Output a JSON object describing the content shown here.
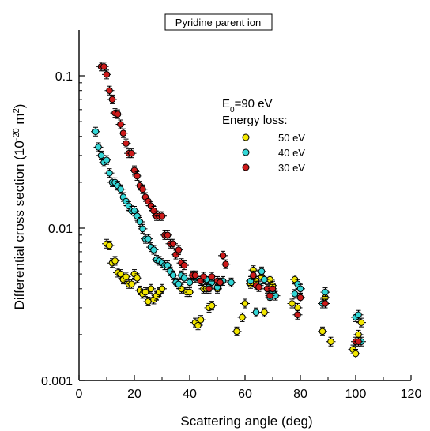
{
  "chart_data": {
    "type": "scatter",
    "title": "Pyridine parent ion",
    "xlabel": "Scattering angle (deg)",
    "ylabel_main": "Differential cross section (10",
    "ylabel_sup": "-20",
    "ylabel_unit": " m",
    "ylabel_unit_sup": "2",
    "ylabel_end": ")",
    "xlim": [
      0,
      120
    ],
    "ylim": [
      0.001,
      0.2
    ],
    "yscale": "log",
    "xticks": [
      0,
      20,
      40,
      60,
      80,
      100,
      120
    ],
    "yticks": [
      {
        "value": 0.001,
        "label": "0.001"
      },
      {
        "value": 0.01,
        "label": "0.01"
      },
      {
        "value": 0.1,
        "label": "0.1"
      }
    ],
    "legend": {
      "line1_main": "E",
      "line1_sub": "0",
      "line1_rest": "=90 eV",
      "line2": "Energy loss:",
      "position": "upper-right"
    },
    "series": [
      {
        "name": "50 eV",
        "color": "#f2e600",
        "points": [
          [
            10,
            0.0079
          ],
          [
            11,
            0.0077
          ],
          [
            12,
            0.0059
          ],
          [
            13,
            0.0061
          ],
          [
            14,
            0.0051
          ],
          [
            15,
            0.005
          ],
          [
            16,
            0.0046
          ],
          [
            17,
            0.0048
          ],
          [
            18,
            0.0043
          ],
          [
            19,
            0.0043
          ],
          [
            20,
            0.005
          ],
          [
            21,
            0.0047
          ],
          [
            22,
            0.0039
          ],
          [
            23,
            0.0037
          ],
          [
            24,
            0.0038
          ],
          [
            25,
            0.0033
          ],
          [
            26,
            0.004
          ],
          [
            27,
            0.0034
          ],
          [
            28,
            0.0036
          ],
          [
            29,
            0.0038
          ],
          [
            30,
            0.004
          ],
          [
            37,
            0.004
          ],
          [
            39,
            0.0038
          ],
          [
            40,
            0.0038
          ],
          [
            42,
            0.0024
          ],
          [
            43,
            0.0023
          ],
          [
            44,
            0.0025
          ],
          [
            45,
            0.004
          ],
          [
            46,
            0.004
          ],
          [
            47,
            0.003
          ],
          [
            48,
            0.0031
          ],
          [
            50,
            0.004
          ],
          [
            57,
            0.0021
          ],
          [
            59,
            0.0026
          ],
          [
            60,
            0.0032
          ],
          [
            62,
            0.0043
          ],
          [
            63,
            0.0053
          ],
          [
            64,
            0.0045
          ],
          [
            66,
            0.0048
          ],
          [
            67,
            0.0028
          ],
          [
            69,
            0.0046
          ],
          [
            70,
            0.0042
          ],
          [
            77,
            0.0032
          ],
          [
            78,
            0.0046
          ],
          [
            79,
            0.003
          ],
          [
            88,
            0.0021
          ],
          [
            89,
            0.0035
          ],
          [
            91,
            0.0018
          ],
          [
            99,
            0.0016
          ],
          [
            100,
            0.0015
          ],
          [
            101,
            0.002
          ],
          [
            102,
            0.0024
          ]
        ]
      },
      {
        "name": "40 eV",
        "color": "#33d6d6",
        "points": [
          [
            6,
            0.043
          ],
          [
            7,
            0.034
          ],
          [
            8,
            0.03
          ],
          [
            9,
            0.027
          ],
          [
            10,
            0.028
          ],
          [
            11,
            0.023
          ],
          [
            12,
            0.02
          ],
          [
            13,
            0.02
          ],
          [
            14,
            0.019
          ],
          [
            15,
            0.018
          ],
          [
            16,
            0.016
          ],
          [
            17,
            0.015
          ],
          [
            18,
            0.014
          ],
          [
            19,
            0.013
          ],
          [
            20,
            0.013
          ],
          [
            21,
            0.012
          ],
          [
            22,
            0.011
          ],
          [
            23,
            0.0099
          ],
          [
            24,
            0.0085
          ],
          [
            25,
            0.0085
          ],
          [
            26,
            0.0075
          ],
          [
            27,
            0.0072
          ],
          [
            28,
            0.0062
          ],
          [
            29,
            0.0061
          ],
          [
            30,
            0.0059
          ],
          [
            31,
            0.0057
          ],
          [
            32,
            0.0057
          ],
          [
            33,
            0.0052
          ],
          [
            34,
            0.0049
          ],
          [
            35,
            0.0044
          ],
          [
            36,
            0.0043
          ],
          [
            37,
            0.0049
          ],
          [
            38,
            0.0047
          ],
          [
            40,
            0.0044
          ],
          [
            42,
            0.0047
          ],
          [
            44,
            0.0045
          ],
          [
            46,
            0.0046
          ],
          [
            47,
            0.0041
          ],
          [
            48,
            0.0044
          ],
          [
            50,
            0.0041
          ],
          [
            52,
            0.0045
          ],
          [
            55,
            0.0044
          ],
          [
            62,
            0.0045
          ],
          [
            64,
            0.0028
          ],
          [
            65,
            0.0042
          ],
          [
            66,
            0.0052
          ],
          [
            67,
            0.0046
          ],
          [
            69,
            0.0035
          ],
          [
            70,
            0.0038
          ],
          [
            71,
            0.0036
          ],
          [
            78,
            0.0037
          ],
          [
            79,
            0.0043
          ],
          [
            80,
            0.004
          ],
          [
            88,
            0.0032
          ],
          [
            89,
            0.0038
          ],
          [
            100,
            0.0026
          ],
          [
            101,
            0.0027
          ],
          [
            102,
            0.0018
          ]
        ]
      },
      {
        "name": "30 eV",
        "color": "#cc1a1a",
        "points": [
          [
            8,
            0.115
          ],
          [
            9,
            0.115
          ],
          [
            10,
            0.102
          ],
          [
            11,
            0.08
          ],
          [
            12,
            0.07
          ],
          [
            13,
            0.057
          ],
          [
            14,
            0.056
          ],
          [
            15,
            0.048
          ],
          [
            16,
            0.042
          ],
          [
            17,
            0.036
          ],
          [
            18,
            0.031
          ],
          [
            19,
            0.031
          ],
          [
            20,
            0.024
          ],
          [
            21,
            0.022
          ],
          [
            22,
            0.019
          ],
          [
            23,
            0.018
          ],
          [
            24,
            0.016
          ],
          [
            25,
            0.015
          ],
          [
            26,
            0.014
          ],
          [
            27,
            0.013
          ],
          [
            28,
            0.012
          ],
          [
            29,
            0.012
          ],
          [
            30,
            0.012
          ],
          [
            31,
            0.009
          ],
          [
            32,
            0.009
          ],
          [
            33,
            0.0079
          ],
          [
            34,
            0.0079
          ],
          [
            35,
            0.0067
          ],
          [
            36,
            0.0072
          ],
          [
            37,
            0.0059
          ],
          [
            38,
            0.0057
          ],
          [
            41,
            0.0049
          ],
          [
            42,
            0.0049
          ],
          [
            44,
            0.0045
          ],
          [
            45,
            0.0048
          ],
          [
            47,
            0.004
          ],
          [
            48,
            0.0048
          ],
          [
            50,
            0.0045
          ],
          [
            51,
            0.0044
          ],
          [
            52,
            0.0066
          ],
          [
            53,
            0.0058
          ],
          [
            63,
            0.0049
          ],
          [
            64,
            0.0042
          ],
          [
            65,
            0.0041
          ],
          [
            68,
            0.004
          ],
          [
            69,
            0.0036
          ],
          [
            70,
            0.004
          ],
          [
            80,
            0.0035
          ],
          [
            79,
            0.0027
          ],
          [
            89,
            0.0032
          ],
          [
            100,
            0.0018
          ],
          [
            101,
            0.0018
          ]
        ]
      }
    ]
  }
}
